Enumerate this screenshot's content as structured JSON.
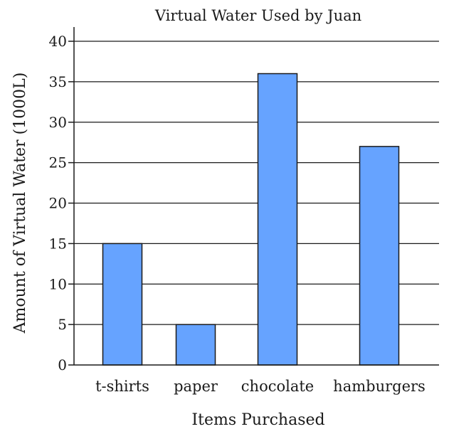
{
  "chart_data": {
    "type": "bar",
    "title": "Virtual Water Used by Juan",
    "xlabel": "Items Purchased",
    "ylabel": "Amount of Virtual Water (1000L)",
    "categories": [
      "t-shirts",
      "paper",
      "chocolate",
      "hamburgers"
    ],
    "values": [
      15,
      5,
      36,
      27
    ],
    "ylim": [
      0,
      40
    ],
    "yticks": [
      0,
      5,
      10,
      15,
      20,
      25,
      30,
      35,
      40
    ],
    "grid": true,
    "bar_color": "#66a3ff"
  }
}
